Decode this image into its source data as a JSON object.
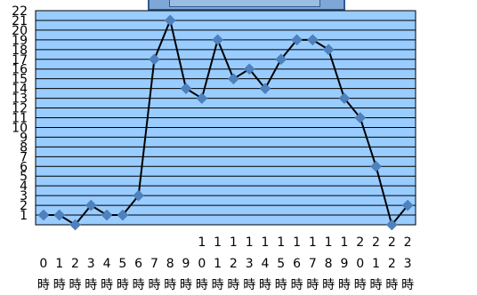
{
  "chart_data": {
    "type": "line",
    "categories": [
      "0時",
      "1時",
      "2時",
      "3時",
      "4時",
      "5時",
      "6時",
      "7時",
      "8時",
      "9時",
      "10時",
      "11時",
      "12時",
      "13時",
      "14時",
      "15時",
      "16時",
      "17時",
      "18時",
      "19時",
      "20時",
      "21時",
      "22時",
      "23時"
    ],
    "values": [
      1,
      1,
      0,
      2,
      1,
      1,
      3,
      17,
      21,
      14,
      13,
      19,
      15,
      16,
      14,
      17,
      19,
      19,
      18,
      13,
      11,
      6,
      0,
      2
    ],
    "ylim": [
      0,
      22
    ],
    "yticks": [
      "1",
      "2",
      "3",
      "4",
      "5",
      "6",
      "7",
      "8",
      "9",
      "10",
      "11",
      "12",
      "13",
      "14",
      "15",
      "16",
      "17",
      "18",
      "19",
      "20",
      "21",
      "22"
    ],
    "grid": true,
    "colors": {
      "plot_bg": "#99ccff",
      "grid": "#000000",
      "line": "#000000",
      "marker": "#4f81bd"
    }
  }
}
